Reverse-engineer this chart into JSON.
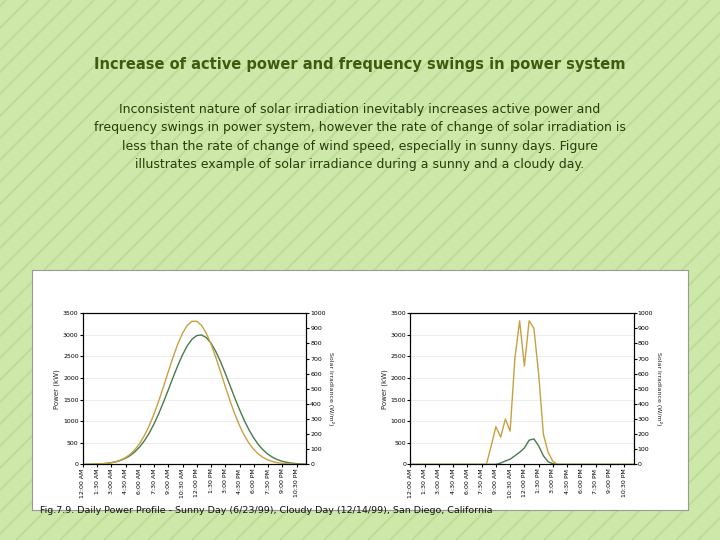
{
  "title": "Increase of active power and frequency swings in power system",
  "body_text": "Inconsistent nature of solar irradiation inevitably increases active power and\nfrequency swings in power system, however the rate of change of solar irradiation is\nless than the rate of change of wind speed, especially in sunny days. Figure\nillustrates example of solar irradiance during a sunny and a cloudy day.",
  "caption": "Fig.7.9. Daily Power Profile - Sunny Day (6/23/99), Cloudy Day (12/14/99), San Diego, California",
  "bg_color": "#cde8a8",
  "stripe_color": "#b8d890",
  "title_color": "#3d5c10",
  "body_color": "#2a3c0a",
  "caption_color": "#111111",
  "power_color": "#4a7a50",
  "irradiance_color": "#c8a040",
  "time_labels": [
    "12:00 AM",
    "1:30 AM",
    "3:00 AM",
    "4:30 AM",
    "6:00 AM",
    "7:30 AM",
    "9:00 AM",
    "10:30 AM",
    "12:00 PM",
    "1:30 PM",
    "3:00 PM",
    "4:30 PM",
    "6:00 PM",
    "7:30 PM",
    "9:00 PM",
    "10:30 PM"
  ]
}
